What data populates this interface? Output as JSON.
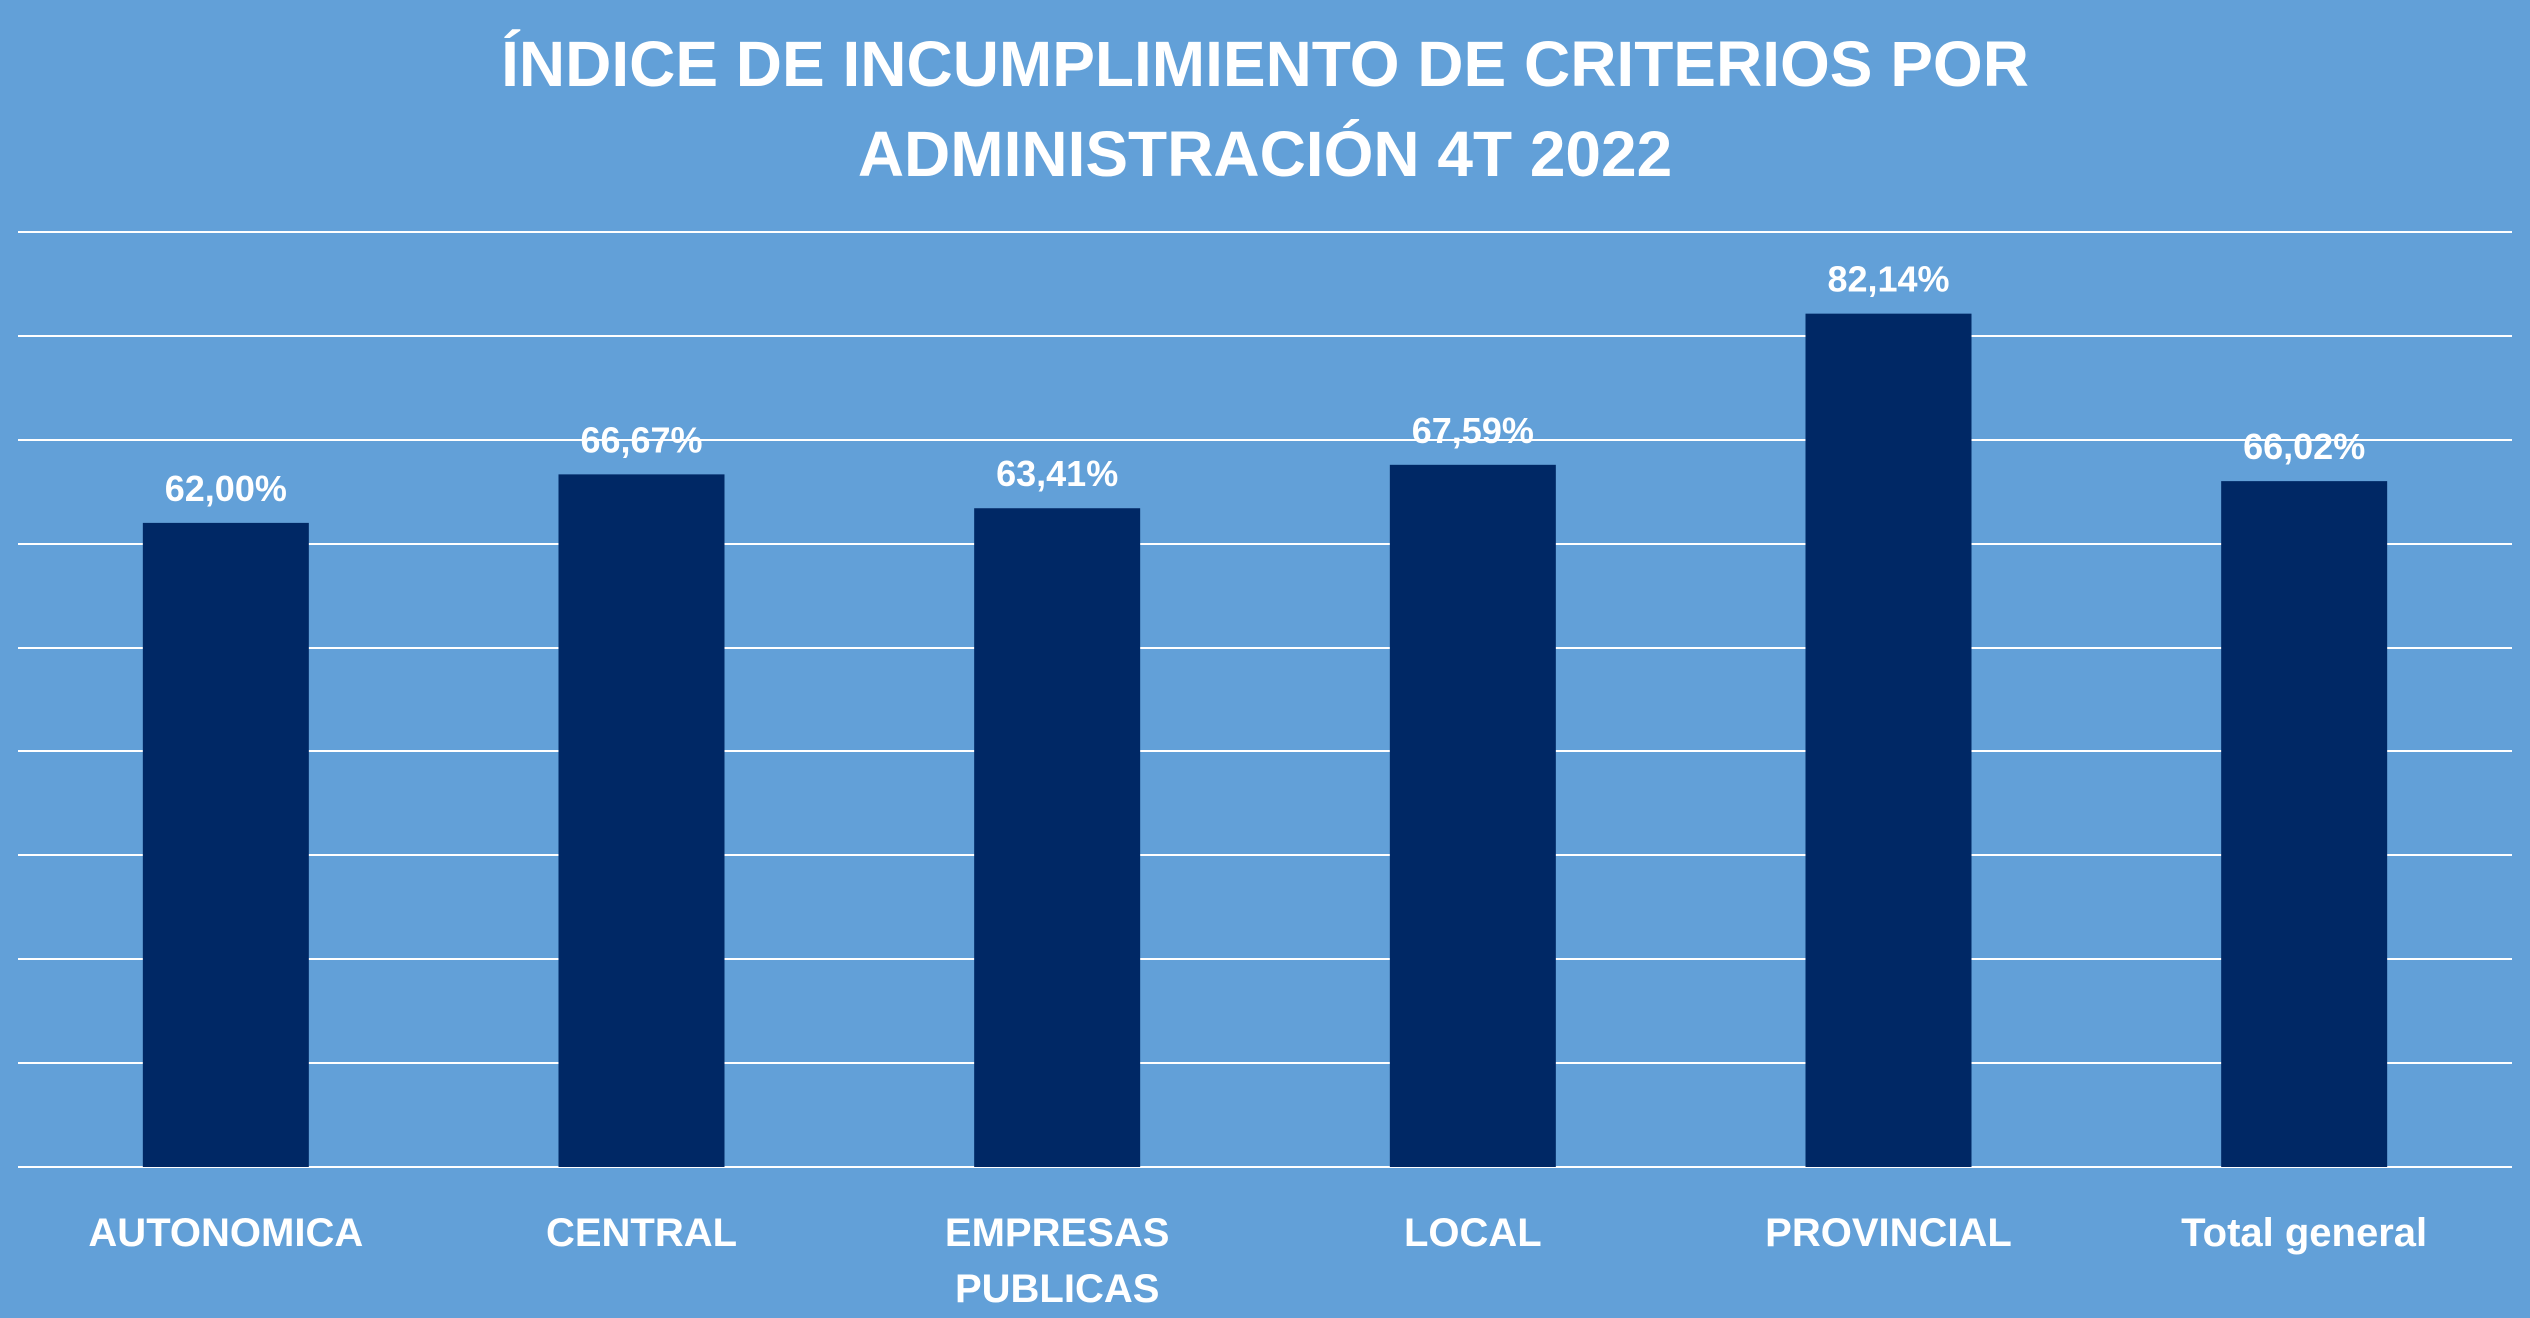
{
  "chart_data": {
    "type": "bar",
    "title_lines": [
      "ÍNDICE DE INCUMPLIMIENTO DE CRITERIOS POR",
      "ADMINISTRACIÓN 4T 2022"
    ],
    "categories": [
      [
        "AUTONOMICA"
      ],
      [
        "CENTRAL"
      ],
      [
        "EMPRESAS",
        "PUBLICAS"
      ],
      [
        "LOCAL"
      ],
      [
        "PROVINCIAL"
      ],
      [
        "Total general"
      ]
    ],
    "values": [
      62.0,
      66.67,
      63.41,
      67.59,
      82.14,
      66.02
    ],
    "data_labels": [
      "62,00%",
      "66,67%",
      "63,41%",
      "67,59%",
      "82,14%",
      "66,02%"
    ],
    "value_unit": "%",
    "ylim": [
      0,
      90
    ],
    "y_grid_step": 10,
    "grid": true,
    "legend": "none",
    "colors": {
      "background": "#62a0d8",
      "bar": "#002865",
      "text": "#ffffff",
      "grid": "#ffffff"
    }
  }
}
